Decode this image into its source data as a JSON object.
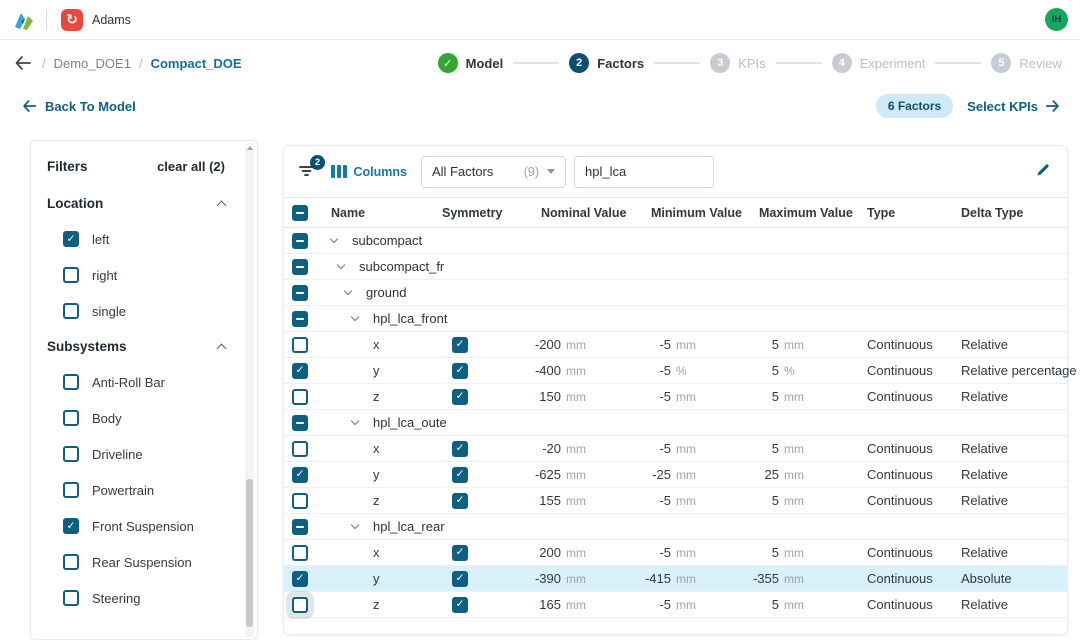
{
  "app_bar": {
    "product_name": "Adams",
    "avatar_initials": "IH"
  },
  "breadcrumb": {
    "parent": "Demo_DOE1",
    "current": "Compact_DOE",
    "separator": "/"
  },
  "stepper": {
    "steps": [
      {
        "label": "Model",
        "state": "done"
      },
      {
        "label": "Factors",
        "number": "2",
        "state": "active"
      },
      {
        "label": "KPIs",
        "number": "3",
        "state": "pending"
      },
      {
        "label": "Experiment",
        "number": "4",
        "state": "pending"
      },
      {
        "label": "Review",
        "number": "5",
        "state": "pending"
      }
    ]
  },
  "subheader": {
    "back_label": "Back To Model",
    "factors_badge": "6 Factors",
    "select_kpis_label": "Select KPIs"
  },
  "filters": {
    "title": "Filters",
    "clear_all_label": "clear all (2)",
    "sections": [
      {
        "title": "Location",
        "options": [
          {
            "label": "left",
            "checked": true
          },
          {
            "label": "right",
            "checked": false
          },
          {
            "label": "single",
            "checked": false
          }
        ]
      },
      {
        "title": "Subsystems",
        "options": [
          {
            "label": "Anti-Roll Bar",
            "checked": false
          },
          {
            "label": "Body",
            "checked": false
          },
          {
            "label": "Driveline",
            "checked": false
          },
          {
            "label": "Powertrain",
            "checked": false
          },
          {
            "label": "Front Suspension",
            "checked": true
          },
          {
            "label": "Rear Suspension",
            "checked": false
          },
          {
            "label": "Steering",
            "checked": false
          }
        ]
      }
    ]
  },
  "table": {
    "toolbar": {
      "filter_badge": "2",
      "columns_label": "Columns",
      "factor_filter_value": "All Factors",
      "factor_filter_count": "(9)",
      "search_value": "hpl_lca"
    },
    "columns": [
      "Name",
      "Symmetry",
      "Nominal Value",
      "Minimum Value",
      "Maximum Value",
      "Type",
      "Delta Type"
    ],
    "rows": [
      {
        "kind": "group",
        "level": 0,
        "name": "subcompact"
      },
      {
        "kind": "group",
        "level": 1,
        "name": "subcompact_fr"
      },
      {
        "kind": "group",
        "level": 2,
        "name": "ground"
      },
      {
        "kind": "group",
        "level": 3,
        "name": "hpl_lca_front"
      },
      {
        "kind": "factor",
        "name": "x",
        "selected": false,
        "symmetry": true,
        "nominal": "-200",
        "nominal_unit": "mm",
        "min": "-5",
        "min_unit": "mm",
        "max": "5",
        "max_unit": "mm",
        "type": "Continuous",
        "delta_type": "Relative"
      },
      {
        "kind": "factor",
        "name": "y",
        "selected": true,
        "symmetry": true,
        "nominal": "-400",
        "nominal_unit": "mm",
        "min": "-5",
        "min_unit": "%",
        "max": "5",
        "max_unit": "%",
        "type": "Continuous",
        "delta_type": "Relative percentage"
      },
      {
        "kind": "factor",
        "name": "z",
        "selected": false,
        "symmetry": true,
        "nominal": "150",
        "nominal_unit": "mm",
        "min": "-5",
        "min_unit": "mm",
        "max": "5",
        "max_unit": "mm",
        "type": "Continuous",
        "delta_type": "Relative"
      },
      {
        "kind": "group",
        "level": 3,
        "name": "hpl_lca_oute"
      },
      {
        "kind": "factor",
        "name": "x",
        "selected": false,
        "symmetry": true,
        "nominal": "-20",
        "nominal_unit": "mm",
        "min": "-5",
        "min_unit": "mm",
        "max": "5",
        "max_unit": "mm",
        "type": "Continuous",
        "delta_type": "Relative"
      },
      {
        "kind": "factor",
        "name": "y",
        "selected": true,
        "symmetry": true,
        "nominal": "-625",
        "nominal_unit": "mm",
        "min": "-25",
        "min_unit": "mm",
        "max": "25",
        "max_unit": "mm",
        "type": "Continuous",
        "delta_type": "Relative"
      },
      {
        "kind": "factor",
        "name": "z",
        "selected": false,
        "symmetry": true,
        "nominal": "155",
        "nominal_unit": "mm",
        "min": "-5",
        "min_unit": "mm",
        "max": "5",
        "max_unit": "mm",
        "type": "Continuous",
        "delta_type": "Relative"
      },
      {
        "kind": "group",
        "level": 3,
        "name": "hpl_lca_rear"
      },
      {
        "kind": "factor",
        "name": "x",
        "selected": false,
        "symmetry": true,
        "nominal": "200",
        "nominal_unit": "mm",
        "min": "-5",
        "min_unit": "mm",
        "max": "5",
        "max_unit": "mm",
        "type": "Continuous",
        "delta_type": "Relative"
      },
      {
        "kind": "factor",
        "name": "y",
        "selected": true,
        "symmetry": true,
        "highlighted": true,
        "nominal": "-390",
        "nominal_unit": "mm",
        "min": "-415",
        "min_unit": "mm",
        "max": "-355",
        "max_unit": "mm",
        "type": "Continuous",
        "delta_type": "Absolute"
      },
      {
        "kind": "factor",
        "name": "z",
        "selected": false,
        "focused": true,
        "symmetry": true,
        "nominal": "165",
        "nominal_unit": "mm",
        "min": "-5",
        "min_unit": "mm",
        "max": "5",
        "max_unit": "mm",
        "type": "Continuous",
        "delta_type": "Relative"
      }
    ]
  },
  "colors": {
    "accent_teal": "#0e5f80",
    "link_blue": "#1478a8",
    "step_done_green": "#33a532",
    "step_active_navy": "#0c4f70",
    "adams_red": "#e8483f",
    "avatar_green": "#16a75c",
    "row_highlight": "#d9f1fb",
    "factors_pill_bg": "#cfe9f6"
  }
}
